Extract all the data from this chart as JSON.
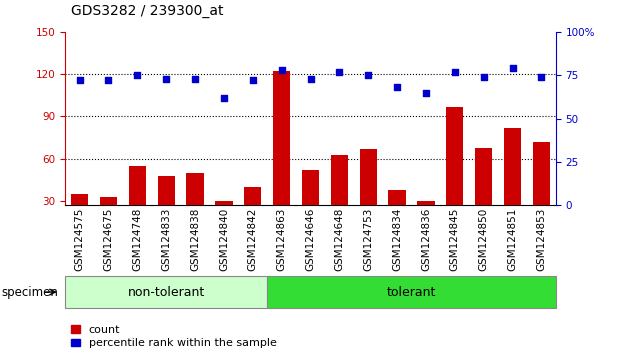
{
  "title": "GDS3282 / 239300_at",
  "samples": [
    "GSM124575",
    "GSM124675",
    "GSM124748",
    "GSM124833",
    "GSM124838",
    "GSM124840",
    "GSM124842",
    "GSM124863",
    "GSM124646",
    "GSM124648",
    "GSM124753",
    "GSM124834",
    "GSM124836",
    "GSM124845",
    "GSM124850",
    "GSM124851",
    "GSM124853"
  ],
  "counts": [
    35,
    33,
    55,
    48,
    50,
    30,
    40,
    122,
    52,
    63,
    67,
    38,
    30,
    97,
    68,
    82,
    72
  ],
  "percentile_ranks": [
    72,
    72,
    75,
    73,
    73,
    62,
    72,
    78,
    73,
    77,
    75,
    68,
    65,
    77,
    74,
    79,
    74
  ],
  "group_labels": [
    "non-tolerant",
    "tolerant"
  ],
  "group_sizes": [
    7,
    10
  ],
  "group_colors": [
    "#ccffcc",
    "#33dd33"
  ],
  "bar_color": "#cc0000",
  "dot_color": "#0000cc",
  "left_axis_color": "#cc0000",
  "right_axis_color": "#0000cc",
  "ylim_left": [
    27,
    150
  ],
  "ylim_right": [
    0,
    100
  ],
  "left_ticks": [
    30,
    60,
    90,
    120,
    150
  ],
  "right_ticks": [
    0,
    25,
    50,
    75,
    100
  ],
  "right_tick_labels": [
    "0",
    "25",
    "50",
    "75",
    "100%"
  ],
  "grid_values": [
    60,
    90,
    120
  ],
  "specimen_label": "specimen",
  "legend_items": [
    "count",
    "percentile rank within the sample"
  ],
  "title_fontsize": 10,
  "tick_fontsize": 7.5,
  "group_fontsize": 9,
  "legend_fontsize": 8
}
